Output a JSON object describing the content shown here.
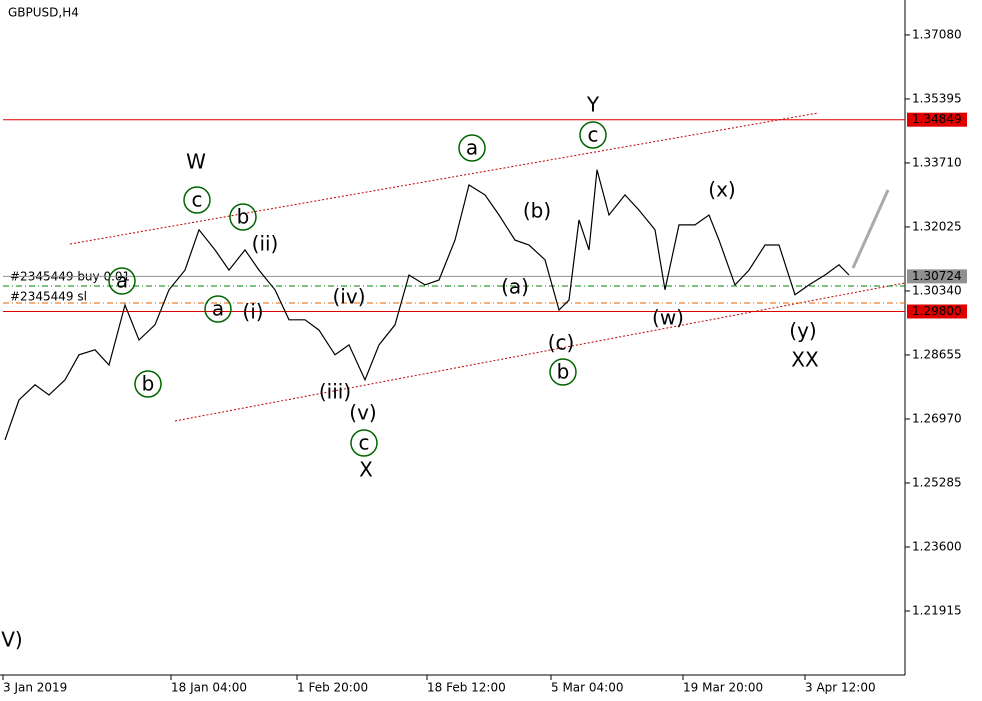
{
  "chart_data": {
    "type": "line",
    "title": "GBPUSD,H4",
    "color": "#000000",
    "x": [
      1,
      8,
      16,
      23,
      31,
      38,
      46,
      53,
      61,
      68,
      76,
      83,
      91,
      98,
      106,
      113,
      121,
      128,
      136,
      143,
      151,
      158,
      166,
      173,
      181,
      188,
      196,
      203,
      211,
      218,
      226,
      233,
      241,
      248,
      256,
      263,
      271,
      278,
      283,
      288,
      293,
      297,
      303,
      311,
      318,
      326,
      331,
      338,
      346,
      353,
      358,
      366,
      373,
      381,
      388,
      396,
      403,
      411,
      418,
      423
    ],
    "values": [
      1.2642,
      1.2747,
      1.2787,
      1.276,
      1.28,
      1.2866,
      1.2879,
      1.2839,
      1.2997,
      1.2905,
      1.2945,
      1.3037,
      1.3089,
      1.3195,
      1.3142,
      1.3089,
      1.3142,
      1.3089,
      1.3037,
      1.2958,
      1.2958,
      1.2931,
      1.2866,
      1.2892,
      1.28,
      1.2892,
      1.2945,
      1.3076,
      1.305,
      1.3063,
      1.3168,
      1.3313,
      1.3287,
      1.3234,
      1.3168,
      1.3155,
      1.3116,
      1.2984,
      1.301,
      1.3221,
      1.3142,
      1.3353,
      1.3234,
      1.3287,
      1.3247,
      1.3195,
      1.3037,
      1.3208,
      1.3208,
      1.3234,
      1.3168,
      1.305,
      1.3089,
      1.3155,
      1.3155,
      1.3024,
      1.305,
      1.3076,
      1.3103,
      1.3076
    ],
    "xlim": [
      0,
      451
    ],
    "xticks": [
      {
        "value": 0,
        "label": "3 Jan 2019"
      },
      {
        "value": 84,
        "label": "18 Jan 04:00"
      },
      {
        "value": 147,
        "label": "1 Feb 20:00"
      },
      {
        "value": 212,
        "label": "18 Feb 12:00"
      },
      {
        "value": 274,
        "label": "5 Mar 04:00"
      },
      {
        "value": 340,
        "label": "19 Mar 20:00"
      },
      {
        "value": 401,
        "label": "3 Apr 12:00"
      }
    ],
    "ylim": [
      1.2023,
      1.38
    ],
    "yticks": [
      {
        "value": 1.3708,
        "label": "1.37080"
      },
      1.35395,
      {
        "value": 1.3371,
        "label": "1.33710"
      },
      1.32025,
      {
        "value": 1.3034,
        "label": "1.30340"
      },
      1.28655,
      {
        "value": 1.2697,
        "label": "1.26970"
      },
      1.25285,
      {
        "value": 1.236,
        "label": "1.23600"
      },
      1.21915
    ],
    "levels": [
      {
        "value": 1.34849,
        "color": "#e00000"
      },
      {
        "value": 1.30724,
        "color": "#909090"
      },
      {
        "value": 1.298,
        "label": "1.29800",
        "color": "#e00000"
      }
    ],
    "orders": [
      "#2345449 buy 0.01",
      "#2345449 sl"
    ],
    "annotations": [
      "W",
      "Y",
      "X",
      "XX",
      "a",
      "c",
      "c",
      "b",
      "a",
      "a",
      "b",
      "b",
      "c",
      "(x)",
      "(b)",
      "(ii)",
      "(i)",
      "(iv)",
      "(a)",
      "(w)",
      "(c)",
      "(y)",
      "(iii)",
      "(v)",
      "V)"
    ]
  }
}
